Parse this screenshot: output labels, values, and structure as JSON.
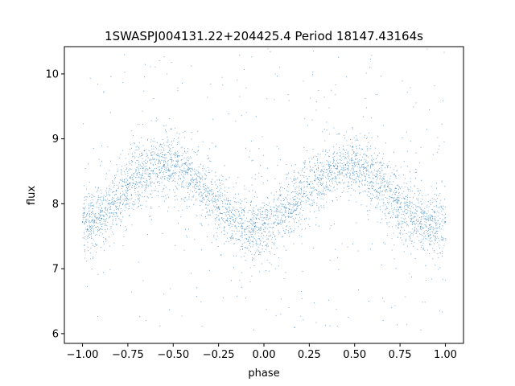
{
  "chart_data": {
    "type": "scatter",
    "title": "1SWASPJ004131.22+204425.4 Period 18147.43164s",
    "xlabel": "phase",
    "ylabel": "flux",
    "xlim": [
      -1.1,
      1.1
    ],
    "ylim": [
      5.85,
      10.42
    ],
    "xticks": [
      -1.0,
      -0.75,
      -0.5,
      -0.25,
      0.0,
      0.25,
      0.5,
      0.75,
      1.0
    ],
    "xtick_labels": [
      "−1.00",
      "−0.75",
      "−0.50",
      "−0.25",
      "0.00",
      "0.25",
      "0.50",
      "0.75",
      "1.00"
    ],
    "yticks": [
      6,
      7,
      8,
      9,
      10
    ],
    "ytick_labels": [
      "6",
      "7",
      "8",
      "9",
      "10"
    ],
    "grid": false,
    "point_color": "#1f77b4",
    "x_range": [
      -1.0,
      1.0
    ],
    "model": {
      "description": "phase-folded light curve, sinusoidal",
      "mean_flux": 8.12,
      "amplitude": 0.48,
      "period_in_phase": 1.0,
      "max_phase": [
        -0.55,
        0.45
      ],
      "min_phase": [
        -0.05,
        0.95
      ],
      "scatter_sigma": 0.22,
      "outlier_range": [
        6.05,
        10.4
      ]
    },
    "samples": [
      {
        "x": -1.0,
        "y": 7.72
      },
      {
        "x": -0.75,
        "y": 8.3
      },
      {
        "x": -0.55,
        "y": 8.6
      },
      {
        "x": -0.25,
        "y": 7.95
      },
      {
        "x": -0.05,
        "y": 7.65
      },
      {
        "x": 0.25,
        "y": 8.3
      },
      {
        "x": 0.45,
        "y": 8.6
      },
      {
        "x": 0.75,
        "y": 7.95
      },
      {
        "x": 1.0,
        "y": 7.72
      }
    ]
  }
}
